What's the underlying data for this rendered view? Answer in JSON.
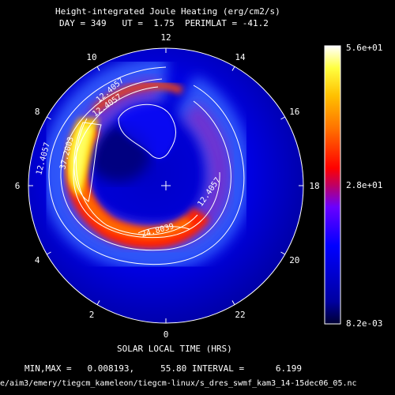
{
  "header": {
    "title": "Height-integrated Joule Heating (erg/cm2/s)",
    "subtitle": "DAY = 349   UT =  1.75  PERIMLAT = -41.2"
  },
  "footer": {
    "xlabel": "SOLAR LOCAL TIME (HRS)",
    "stats": "MIN,MAX =   0.008193,     55.80 INTERVAL =      6.199",
    "path": "e/aim3/emery/tiegcm_kameleon/tiegcm-linux/s_dres_swmf_kam3_14-15dec06_05.nc"
  },
  "chart_data": {
    "type": "heatmap",
    "title": "Height-integrated Joule Heating (erg/cm2/s)",
    "subtitle": "DAY = 349   UT =  1.75  PERIMLAT = -41.2",
    "xlabel": "SOLAR LOCAL TIME (HRS)",
    "projection": "polar",
    "clock_labels": [
      "12",
      "14",
      "16",
      "18",
      "20",
      "22",
      "0",
      "2",
      "4",
      "6",
      "8",
      "10"
    ],
    "contour_labels": [
      "12.4057",
      "37.2003",
      "12.4057",
      "24.8039",
      "12.4057",
      "12.4057"
    ],
    "colorbar": {
      "min_label": "8.2e-03",
      "mid_label": "2.8e+01",
      "max_label": "5.6e+01",
      "min": 0.008193,
      "max": 55.8,
      "interval": 6.199
    }
  }
}
